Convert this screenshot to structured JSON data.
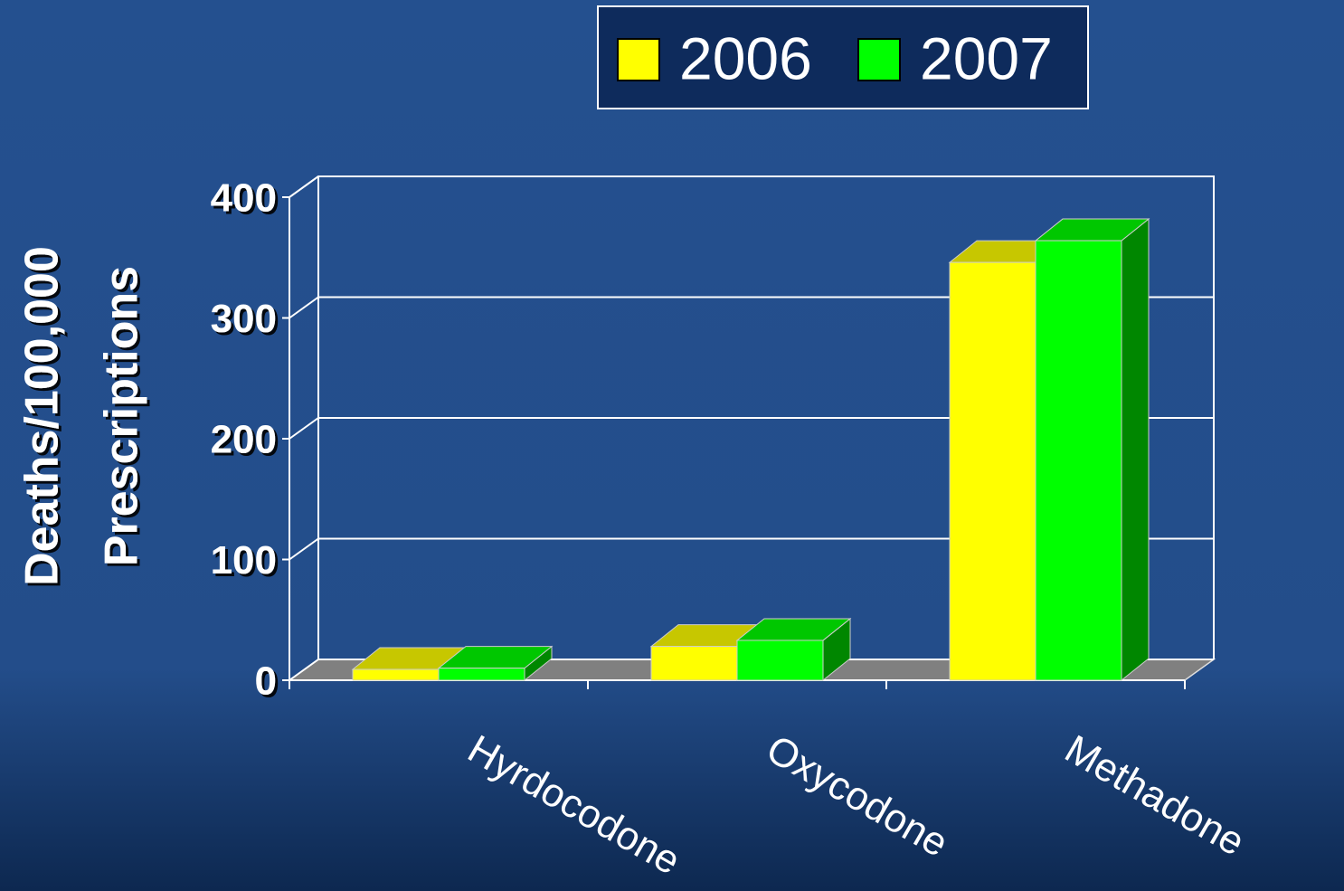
{
  "chart_data": {
    "type": "bar3d",
    "ylabel": [
      "Deaths/100,000",
      "Prescriptions"
    ],
    "categories": [
      "Hyrdocodone",
      "Oxycodone",
      "Methadone"
    ],
    "series": [
      {
        "name": "2006",
        "color": "#ffff00",
        "values": [
          9,
          28,
          346
        ]
      },
      {
        "name": "2007",
        "color": "#00ff00",
        "values": [
          10,
          33,
          364
        ]
      }
    ],
    "ylim": [
      0,
      400
    ],
    "yticks": [
      0,
      100,
      200,
      300,
      400
    ],
    "grid": true,
    "legend": "top"
  }
}
